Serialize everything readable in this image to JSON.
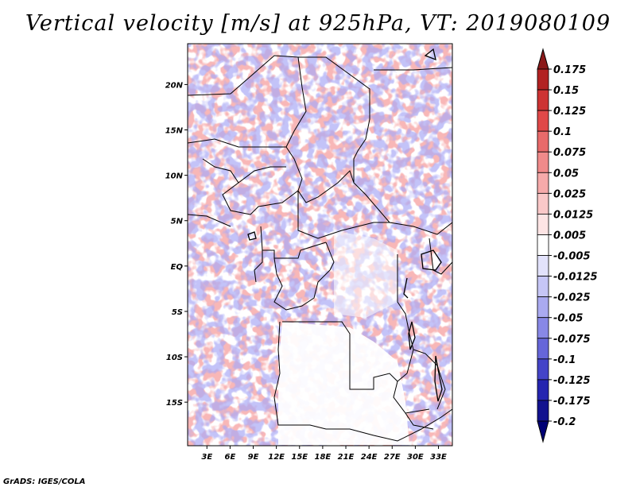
{
  "title": "Vertical velocity [m/s] at 925hPa, VT: 2019080109",
  "credit": "GrADS: IGES/COLA",
  "map": {
    "lat_labels": [
      "20N",
      "15N",
      "10N",
      "5N",
      "EQ",
      "5S",
      "10S",
      "15S"
    ],
    "lon_labels": [
      "3E",
      "6E",
      "9E",
      "12E",
      "15E",
      "18E",
      "21E",
      "24E",
      "27E",
      "30E",
      "33E"
    ],
    "lat_values": [
      20,
      15,
      10,
      5,
      0,
      -5,
      -10,
      -15
    ],
    "lon_values": [
      3,
      6,
      9,
      12,
      15,
      18,
      21,
      24,
      27,
      30,
      33
    ],
    "extent": {
      "lon_min": 0.5,
      "lon_max": 34.8,
      "lat_min": -19.8,
      "lat_max": 24.5
    }
  },
  "colorbar": {
    "labels": [
      "0.175",
      "0.15",
      "0.125",
      "0.1",
      "0.075",
      "0.05",
      "0.025",
      "0.0125",
      "0.005",
      "-0.005",
      "-0.0125",
      "-0.025",
      "-0.05",
      "-0.075",
      "-0.1",
      "-0.125",
      "-0.175",
      "-0.2"
    ],
    "colors": [
      "#8b1a1a",
      "#b22222",
      "#cd3333",
      "#e04848",
      "#e86a6a",
      "#f08a8a",
      "#f6aaaa",
      "#fac8c8",
      "#fde4e4",
      "#ffffff",
      "#e2e2fb",
      "#c6c6f6",
      "#aaaaf0",
      "#8888e6",
      "#6666d9",
      "#4444c8",
      "#2525b0",
      "#12128f",
      "#000075"
    ]
  }
}
